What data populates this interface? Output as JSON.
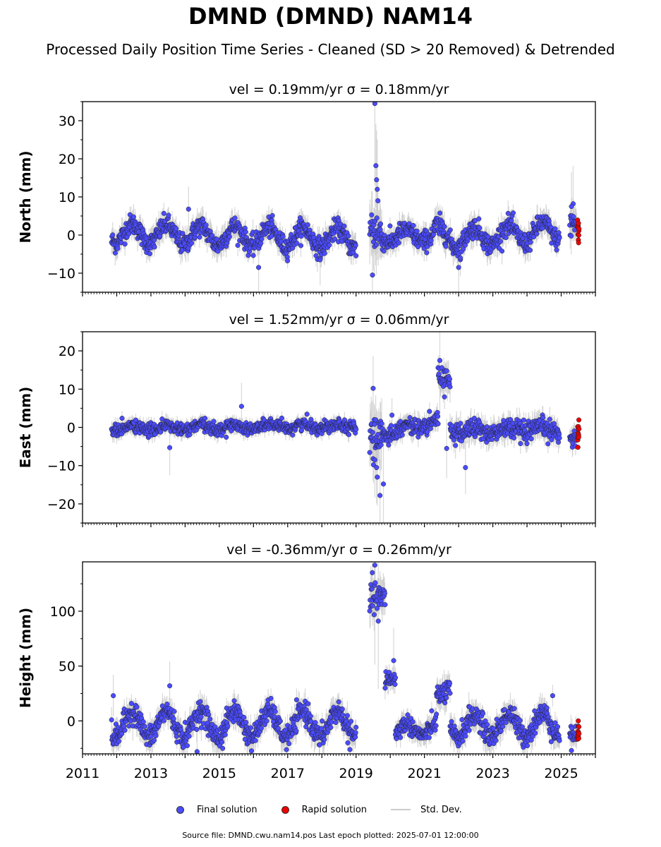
{
  "title": "DMND (DMND) NAM14",
  "subtitle": "Processed Daily Position Time Series - Cleaned (SD > 20 Removed) & Detrended",
  "footer": "Source file: DMND.cwu.nam14.pos  Last epoch plotted: 2025-07-01 12:00:00",
  "legend": {
    "final": "Final solution",
    "rapid": "Rapid solution",
    "std": "Std. Dev."
  },
  "colors": {
    "final": "#4b4bff",
    "rapid": "#ee0000",
    "std": "#c8c8c8",
    "marker_edge": "#222222"
  },
  "chart_data": [
    {
      "type": "scatter",
      "panel": "north",
      "title": "vel = 0.19mm/yr   σ = 0.18mm/yr",
      "xlabel": "",
      "ylabel": "North (mm)",
      "xlim": [
        2011,
        2026
      ],
      "ylim": [
        -15,
        35
      ],
      "yticks": [
        -10,
        0,
        10,
        20,
        30
      ],
      "xticks": [
        2011,
        2013,
        2015,
        2017,
        2019,
        2021,
        2023,
        2025
      ],
      "series": [
        {
          "name": "Final solution",
          "segments": [
            {
              "x": [
                2011.85,
                2019.0
              ],
              "y": [
                0.5,
                -1.0
              ],
              "amp": 2.5,
              "noise": 1.3,
              "period": 1
            },
            {
              "x": [
                2019.4,
                2019.75
              ],
              "y": [
                2,
                0
              ],
              "amp": 0,
              "noise": 3.0,
              "period": 1
            },
            {
              "x": [
                2019.75,
                2021.3
              ],
              "y": [
                -0.5,
                0.0
              ],
              "amp": 1.5,
              "noise": 1.3,
              "period": 1
            },
            {
              "x": [
                2021.3,
                2021.65
              ],
              "y": [
                2.5,
                1.0
              ],
              "amp": 0,
              "noise": 1.6,
              "period": 1
            },
            {
              "x": [
                2021.65,
                2024.95
              ],
              "y": [
                -1.0,
                1.0
              ],
              "amp": 2.5,
              "noise": 1.3,
              "period": 1
            },
            {
              "x": [
                2025.25,
                2025.45
              ],
              "y": [
                3.0,
                3.0
              ],
              "amp": 0,
              "noise": 1.8,
              "period": 1
            }
          ],
          "outliers": [
            [
              2019.55,
              34.5
            ],
            [
              2019.58,
              18.2
            ],
            [
              2019.6,
              14.5
            ],
            [
              2019.62,
              12.0
            ],
            [
              2019.64,
              9.0
            ],
            [
              2019.48,
              -10.5
            ],
            [
              2014.1,
              6.8
            ],
            [
              2016.15,
              -8.5
            ],
            [
              2017.95,
              -6.5
            ],
            [
              2022.0,
              -8.5
            ],
            [
              2022.05,
              -6.0
            ],
            [
              2025.35,
              8.2
            ],
            [
              2025.3,
              7.5
            ]
          ]
        },
        {
          "name": "Rapid solution",
          "segments": [
            {
              "x": [
                2025.48,
                2025.52
              ],
              "y": [
                1.5,
                1.5
              ],
              "amp": 0,
              "noise": 1.4,
              "period": 1
            }
          ],
          "outliers": []
        }
      ]
    },
    {
      "type": "scatter",
      "panel": "east",
      "title": "vel = 1.52mm/yr   σ = 0.06mm/yr",
      "xlabel": "",
      "ylabel": "East (mm)",
      "xlim": [
        2011,
        2026
      ],
      "ylim": [
        -25,
        25
      ],
      "yticks": [
        -20,
        -10,
        0,
        10,
        20
      ],
      "xticks": [
        2011,
        2013,
        2015,
        2017,
        2019,
        2021,
        2023,
        2025
      ],
      "series": [
        {
          "name": "Final solution",
          "segments": [
            {
              "x": [
                2011.85,
                2019.0
              ],
              "y": [
                -0.3,
                0.5
              ],
              "amp": 0.6,
              "noise": 0.8,
              "period": 1
            },
            {
              "x": [
                2019.4,
                2019.75
              ],
              "y": [
                -2.0,
                -4.0
              ],
              "amp": 0,
              "noise": 3.0,
              "period": 1
            },
            {
              "x": [
                2019.75,
                2021.4
              ],
              "y": [
                -1.5,
                1.5
              ],
              "amp": 0.8,
              "noise": 1.0,
              "period": 1
            },
            {
              "x": [
                2021.4,
                2021.75
              ],
              "y": [
                13.0,
                13.0
              ],
              "amp": 0,
              "noise": 1.6,
              "period": 1
            },
            {
              "x": [
                2021.75,
                2024.95
              ],
              "y": [
                -1.0,
                -0.8
              ],
              "amp": 0.8,
              "noise": 1.3,
              "period": 1
            },
            {
              "x": [
                2025.25,
                2025.45
              ],
              "y": [
                -2.5,
                -2.5
              ],
              "amp": 0,
              "noise": 1.2,
              "period": 1
            }
          ],
          "outliers": [
            [
              2015.65,
              5.5
            ],
            [
              2013.55,
              -5.3
            ],
            [
              2019.5,
              10.2
            ],
            [
              2019.55,
              -8.5
            ],
            [
              2019.6,
              -10.5
            ],
            [
              2019.62,
              -13.0
            ],
            [
              2019.7,
              -17.8
            ],
            [
              2019.8,
              -14.8
            ],
            [
              2021.45,
              17.5
            ],
            [
              2022.2,
              -10.5
            ],
            [
              2020.05,
              3.2
            ],
            [
              2021.65,
              -5.5
            ]
          ]
        },
        {
          "name": "Rapid solution",
          "segments": [
            {
              "x": [
                2025.48,
                2025.52
              ],
              "y": [
                -1.0,
                -1.0
              ],
              "amp": 0,
              "noise": 1.8,
              "period": 1
            }
          ],
          "outliers": [
            [
              2025.49,
              -5.2
            ]
          ]
        }
      ]
    },
    {
      "type": "scatter",
      "panel": "height",
      "title": "vel = -0.36mm/yr   σ = 0.26mm/yr",
      "xlabel": "",
      "ylabel": "Height (mm)",
      "xlim": [
        2011,
        2026
      ],
      "ylim": [
        -30,
        145
      ],
      "yticks": [
        0,
        50,
        100
      ],
      "xticks": [
        2011,
        2013,
        2015,
        2017,
        2019,
        2021,
        2023,
        2025
      ],
      "xticklabels": [
        "2011",
        "2013",
        "2015",
        "2017",
        "2019",
        "2021",
        "2023",
        "2025"
      ],
      "series": [
        {
          "name": "Final solution",
          "segments": [
            {
              "x": [
                2011.85,
                2019.0
              ],
              "y": [
                -3,
                -3
              ],
              "amp": 12,
              "noise": 5,
              "period": 1
            },
            {
              "x": [
                2019.4,
                2019.85
              ],
              "y": [
                112,
                112
              ],
              "amp": 0,
              "noise": 7,
              "period": 1
            },
            {
              "x": [
                2019.85,
                2020.15
              ],
              "y": [
                38,
                38
              ],
              "amp": 0,
              "noise": 4,
              "period": 1
            },
            {
              "x": [
                2020.15,
                2021.35
              ],
              "y": [
                -10,
                -5
              ],
              "amp": 6,
              "noise": 4,
              "period": 1
            },
            {
              "x": [
                2021.35,
                2021.75
              ],
              "y": [
                22,
                28
              ],
              "amp": 0,
              "noise": 5,
              "period": 1
            },
            {
              "x": [
                2021.75,
                2024.95
              ],
              "y": [
                -5,
                -3
              ],
              "amp": 10,
              "noise": 5,
              "period": 1
            },
            {
              "x": [
                2025.25,
                2025.45
              ],
              "y": [
                -12,
                -12
              ],
              "amp": 0,
              "noise": 4,
              "period": 1
            }
          ],
          "outliers": [
            [
              2019.55,
              142
            ],
            [
              2019.65,
              91
            ],
            [
              2020.1,
              55
            ],
            [
              2013.55,
              32
            ],
            [
              2011.9,
              23
            ],
            [
              2014.35,
              -28
            ],
            [
              2015.1,
              -25
            ],
            [
              2024.75,
              23
            ],
            [
              2025.3,
              -27
            ]
          ]
        },
        {
          "name": "Rapid solution",
          "segments": [
            {
              "x": [
                2025.48,
                2025.52
              ],
              "y": [
                -10,
                -10
              ],
              "amp": 0,
              "noise": 4,
              "period": 1
            }
          ],
          "outliers": [
            [
              2025.5,
              0
            ]
          ]
        }
      ]
    }
  ]
}
